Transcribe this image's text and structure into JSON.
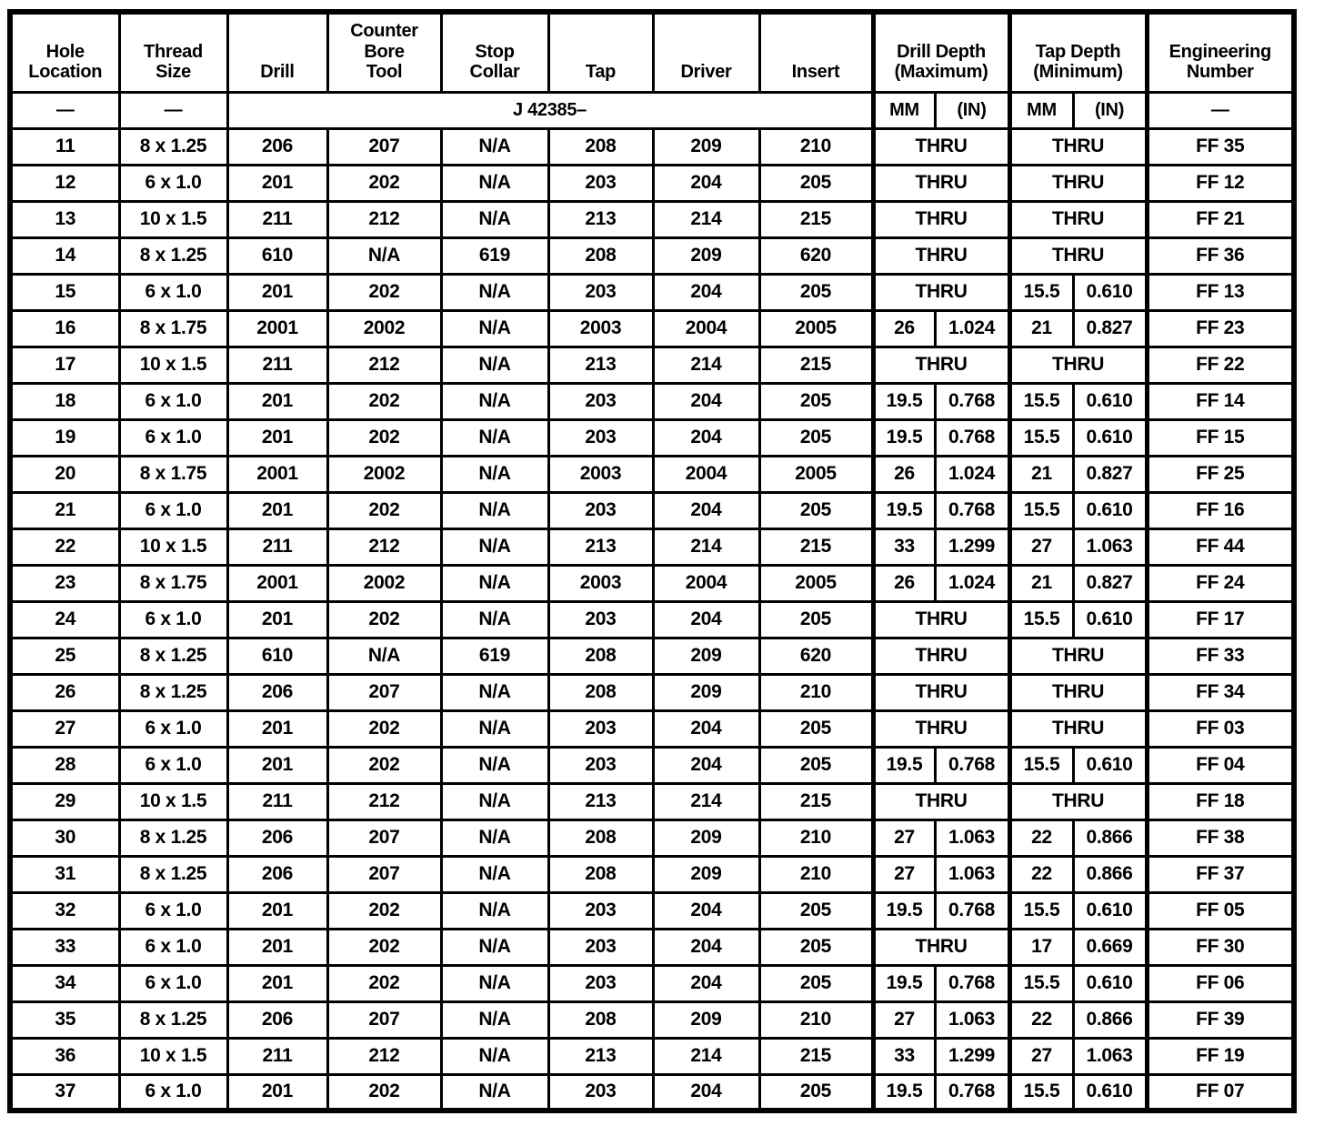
{
  "page": {
    "background": "#ffffff",
    "ink": "#000000"
  },
  "table": {
    "header": {
      "hole_location": "Hole\nLocation",
      "thread_size": "Thread\nSize",
      "drill": "Drill",
      "counter_bore_tool": "Counter\nBore\nTool",
      "stop_collar": "Stop\nCollar",
      "tap": "Tap",
      "driver": "Driver",
      "insert": "Insert",
      "drill_depth_max": "Drill Depth\n(Maximum)",
      "tap_depth_min": "Tap Depth\n(Minimum)",
      "engineering_number": "Engineering\nNumber"
    },
    "subheader": {
      "hole_location": "—",
      "thread_size": "—",
      "tool_set_number": "J 42385–",
      "drill_mm": "MM",
      "drill_in": "(IN)",
      "tap_mm": "MM",
      "tap_in": "(IN)",
      "engineering_number": "—"
    },
    "rows": [
      {
        "cells": [
          "11",
          "8 x 1.25",
          "206",
          "207",
          "N/A",
          "208",
          "209",
          "210"
        ],
        "drill_depth": [
          "THRU"
        ],
        "tap_depth": [
          "THRU"
        ],
        "eng": "FF 35"
      },
      {
        "cells": [
          "12",
          "6 x 1.0",
          "201",
          "202",
          "N/A",
          "203",
          "204",
          "205"
        ],
        "drill_depth": [
          "THRU"
        ],
        "tap_depth": [
          "THRU"
        ],
        "eng": "FF 12"
      },
      {
        "cells": [
          "13",
          "10 x 1.5",
          "211",
          "212",
          "N/A",
          "213",
          "214",
          "215"
        ],
        "drill_depth": [
          "THRU"
        ],
        "tap_depth": [
          "THRU"
        ],
        "eng": "FF 21"
      },
      {
        "cells": [
          "14",
          "8 x 1.25",
          "610",
          "N/A",
          "619",
          "208",
          "209",
          "620"
        ],
        "drill_depth": [
          "THRU"
        ],
        "tap_depth": [
          "THRU"
        ],
        "eng": "FF 36"
      },
      {
        "cells": [
          "15",
          "6 x 1.0",
          "201",
          "202",
          "N/A",
          "203",
          "204",
          "205"
        ],
        "drill_depth": [
          "THRU"
        ],
        "tap_depth": [
          "15.5",
          "0.610"
        ],
        "eng": "FF 13"
      },
      {
        "cells": [
          "16",
          "8 x 1.75",
          "2001",
          "2002",
          "N/A",
          "2003",
          "2004",
          "2005"
        ],
        "drill_depth": [
          "26",
          "1.024"
        ],
        "tap_depth": [
          "21",
          "0.827"
        ],
        "eng": "FF 23"
      },
      {
        "cells": [
          "17",
          "10 x 1.5",
          "211",
          "212",
          "N/A",
          "213",
          "214",
          "215"
        ],
        "drill_depth": [
          "THRU"
        ],
        "tap_depth": [
          "THRU"
        ],
        "eng": "FF 22"
      },
      {
        "cells": [
          "18",
          "6 x 1.0",
          "201",
          "202",
          "N/A",
          "203",
          "204",
          "205"
        ],
        "drill_depth": [
          "19.5",
          "0.768"
        ],
        "tap_depth": [
          "15.5",
          "0.610"
        ],
        "eng": "FF 14"
      },
      {
        "cells": [
          "19",
          "6 x 1.0",
          "201",
          "202",
          "N/A",
          "203",
          "204",
          "205"
        ],
        "drill_depth": [
          "19.5",
          "0.768"
        ],
        "tap_depth": [
          "15.5",
          "0.610"
        ],
        "eng": "FF 15"
      },
      {
        "cells": [
          "20",
          "8 x 1.75",
          "2001",
          "2002",
          "N/A",
          "2003",
          "2004",
          "2005"
        ],
        "drill_depth": [
          "26",
          "1.024"
        ],
        "tap_depth": [
          "21",
          "0.827"
        ],
        "eng": "FF 25"
      },
      {
        "cells": [
          "21",
          "6 x 1.0",
          "201",
          "202",
          "N/A",
          "203",
          "204",
          "205"
        ],
        "drill_depth": [
          "19.5",
          "0.768"
        ],
        "tap_depth": [
          "15.5",
          "0.610"
        ],
        "eng": "FF 16"
      },
      {
        "cells": [
          "22",
          "10 x 1.5",
          "211",
          "212",
          "N/A",
          "213",
          "214",
          "215"
        ],
        "drill_depth": [
          "33",
          "1.299"
        ],
        "tap_depth": [
          "27",
          "1.063"
        ],
        "eng": "FF 44"
      },
      {
        "cells": [
          "23",
          "8 x 1.75",
          "2001",
          "2002",
          "N/A",
          "2003",
          "2004",
          "2005"
        ],
        "drill_depth": [
          "26",
          "1.024"
        ],
        "tap_depth": [
          "21",
          "0.827"
        ],
        "eng": "FF 24"
      },
      {
        "cells": [
          "24",
          "6 x 1.0",
          "201",
          "202",
          "N/A",
          "203",
          "204",
          "205"
        ],
        "drill_depth": [
          "THRU"
        ],
        "tap_depth": [
          "15.5",
          "0.610"
        ],
        "eng": "FF 17"
      },
      {
        "cells": [
          "25",
          "8 x 1.25",
          "610",
          "N/A",
          "619",
          "208",
          "209",
          "620"
        ],
        "drill_depth": [
          "THRU"
        ],
        "tap_depth": [
          "THRU"
        ],
        "eng": "FF 33"
      },
      {
        "cells": [
          "26",
          "8 x 1.25",
          "206",
          "207",
          "N/A",
          "208",
          "209",
          "210"
        ],
        "drill_depth": [
          "THRU"
        ],
        "tap_depth": [
          "THRU"
        ],
        "eng": "FF 34"
      },
      {
        "cells": [
          "27",
          "6 x 1.0",
          "201",
          "202",
          "N/A",
          "203",
          "204",
          "205"
        ],
        "drill_depth": [
          "THRU"
        ],
        "tap_depth": [
          "THRU"
        ],
        "eng": "FF 03"
      },
      {
        "cells": [
          "28",
          "6 x 1.0",
          "201",
          "202",
          "N/A",
          "203",
          "204",
          "205"
        ],
        "drill_depth": [
          "19.5",
          "0.768"
        ],
        "tap_depth": [
          "15.5",
          "0.610"
        ],
        "eng": "FF 04"
      },
      {
        "cells": [
          "29",
          "10 x 1.5",
          "211",
          "212",
          "N/A",
          "213",
          "214",
          "215"
        ],
        "drill_depth": [
          "THRU"
        ],
        "tap_depth": [
          "THRU"
        ],
        "eng": "FF 18"
      },
      {
        "cells": [
          "30",
          "8 x 1.25",
          "206",
          "207",
          "N/A",
          "208",
          "209",
          "210"
        ],
        "drill_depth": [
          "27",
          "1.063"
        ],
        "tap_depth": [
          "22",
          "0.866"
        ],
        "eng": "FF 38"
      },
      {
        "cells": [
          "31",
          "8 x 1.25",
          "206",
          "207",
          "N/A",
          "208",
          "209",
          "210"
        ],
        "drill_depth": [
          "27",
          "1.063"
        ],
        "tap_depth": [
          "22",
          "0.866"
        ],
        "eng": "FF 37"
      },
      {
        "cells": [
          "32",
          "6 x 1.0",
          "201",
          "202",
          "N/A",
          "203",
          "204",
          "205"
        ],
        "drill_depth": [
          "19.5",
          "0.768"
        ],
        "tap_depth": [
          "15.5",
          "0.610"
        ],
        "eng": "FF 05"
      },
      {
        "cells": [
          "33",
          "6 x 1.0",
          "201",
          "202",
          "N/A",
          "203",
          "204",
          "205"
        ],
        "drill_depth": [
          "THRU"
        ],
        "tap_depth": [
          "17",
          "0.669"
        ],
        "eng": "FF 30"
      },
      {
        "cells": [
          "34",
          "6 x 1.0",
          "201",
          "202",
          "N/A",
          "203",
          "204",
          "205"
        ],
        "drill_depth": [
          "19.5",
          "0.768"
        ],
        "tap_depth": [
          "15.5",
          "0.610"
        ],
        "eng": "FF 06"
      },
      {
        "cells": [
          "35",
          "8 x 1.25",
          "206",
          "207",
          "N/A",
          "208",
          "209",
          "210"
        ],
        "drill_depth": [
          "27",
          "1.063"
        ],
        "tap_depth": [
          "22",
          "0.866"
        ],
        "eng": "FF 39"
      },
      {
        "cells": [
          "36",
          "10 x 1.5",
          "211",
          "212",
          "N/A",
          "213",
          "214",
          "215"
        ],
        "drill_depth": [
          "33",
          "1.299"
        ],
        "tap_depth": [
          "27",
          "1.063"
        ],
        "eng": "FF 19"
      },
      {
        "cells": [
          "37",
          "6 x 1.0",
          "201",
          "202",
          "N/A",
          "203",
          "204",
          "205"
        ],
        "drill_depth": [
          "19.5",
          "0.768"
        ],
        "tap_depth": [
          "15.5",
          "0.610"
        ],
        "eng": "FF 07"
      }
    ]
  }
}
